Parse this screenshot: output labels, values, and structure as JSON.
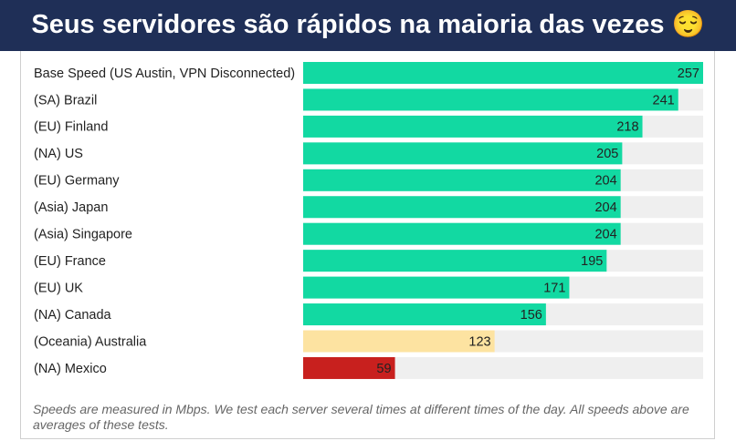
{
  "chart_data": {
    "type": "bar",
    "orientation": "horizontal",
    "title": "Seus servidores são rápidos na maioria das vezes 😌",
    "categories": [
      "Base Speed (US Austin, VPN Disconnected)",
      "(SA) Brazil",
      "(EU) Finland",
      "(NA) US",
      "(EU) Germany",
      "(Asia) Japan",
      "(Asia) Singapore",
      "(EU) France",
      "(EU) UK",
      "(NA) Canada",
      "(Oceania) Australia",
      "(NA) Mexico"
    ],
    "values": [
      257,
      241,
      218,
      205,
      204,
      204,
      204,
      195,
      171,
      156,
      123,
      59
    ],
    "colors": [
      "#12d9a2",
      "#12d9a2",
      "#12d9a2",
      "#12d9a2",
      "#12d9a2",
      "#12d9a2",
      "#12d9a2",
      "#12d9a2",
      "#12d9a2",
      "#12d9a2",
      "#fde3a1",
      "#c8201e"
    ],
    "xlim": [
      0,
      257
    ],
    "note": "Speeds are measured in Mbps. We test each server several times at different times of the day. All speeds above are averages of these tests."
  }
}
